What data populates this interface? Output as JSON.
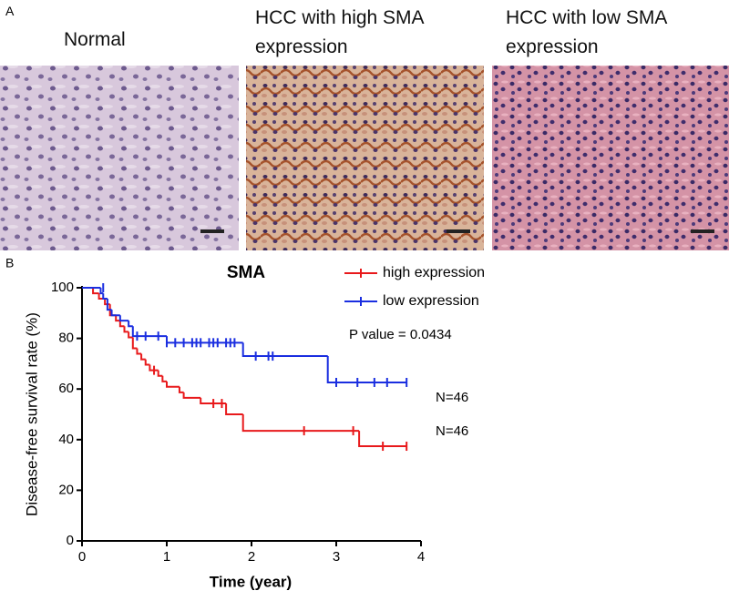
{
  "panel_a": {
    "label": "A",
    "images": [
      {
        "title": "Normal"
      },
      {
        "title": "HCC with high SMA expression"
      },
      {
        "title": "HCC with low SMA expression"
      }
    ]
  },
  "chart_data": {
    "type": "step",
    "panel_label": "B",
    "title": "SMA",
    "x_label": "Time (year)",
    "y_label": "Disease-free survival rate (%)",
    "xlim": [
      0,
      4
    ],
    "ylim": [
      0,
      100
    ],
    "xticks": [
      0,
      1,
      2,
      3,
      4
    ],
    "yticks": [
      0,
      20,
      40,
      60,
      80,
      100
    ],
    "series": [
      {
        "name": "high expression",
        "color": "#e8191b",
        "x": [
          0,
          0.13,
          0.2,
          0.27,
          0.33,
          0.4,
          0.45,
          0.5,
          0.55,
          0.6,
          0.65,
          0.7,
          0.75,
          0.8,
          0.9,
          0.95,
          1.0,
          1.15,
          1.2,
          1.4,
          1.7,
          1.9,
          3.27,
          3.83
        ],
        "values": [
          100,
          97.8,
          95.7,
          93.5,
          89.1,
          87,
          84.8,
          82.6,
          80.4,
          76.1,
          73.9,
          71.7,
          69.6,
          67.4,
          65.2,
          63,
          60.9,
          58.7,
          56.5,
          54.3,
          50,
          43.5,
          37.4,
          37.4
        ],
        "censored": {
          "x": [
            0.85,
            1.55,
            1.65,
            2.62,
            3.2,
            3.55,
            3.83
          ],
          "values": [
            67.4,
            54.3,
            54.3,
            43.5,
            43.5,
            37.4,
            37.4
          ]
        }
      },
      {
        "name": "low expression",
        "color": "#1a2ee0",
        "x": [
          0,
          0.22,
          0.25,
          0.3,
          0.35,
          0.45,
          0.55,
          0.6,
          1.0,
          1.9,
          2.9,
          3.83
        ],
        "values": [
          100,
          97.8,
          95.7,
          91.3,
          89.1,
          87,
          84.8,
          80.9,
          78.3,
          73,
          62.6,
          62.6
        ],
        "censored": {
          "x": [
            0.25,
            0.65,
            0.75,
            0.9,
            1.0,
            1.1,
            1.2,
            1.3,
            1.35,
            1.4,
            1.5,
            1.55,
            1.6,
            1.7,
            1.75,
            1.8,
            2.05,
            2.2,
            2.25,
            3.0,
            3.25,
            3.45,
            3.6,
            3.83
          ],
          "values": [
            100,
            80.9,
            80.9,
            80.9,
            78.3,
            78.3,
            78.3,
            78.3,
            78.3,
            78.3,
            78.3,
            78.3,
            78.3,
            78.3,
            78.3,
            78.3,
            73,
            73,
            73,
            62.6,
            62.6,
            62.6,
            62.6,
            62.6
          ]
        }
      }
    ],
    "annotations": [
      "P value =  0.0434",
      "N=46",
      "N=46"
    ]
  }
}
